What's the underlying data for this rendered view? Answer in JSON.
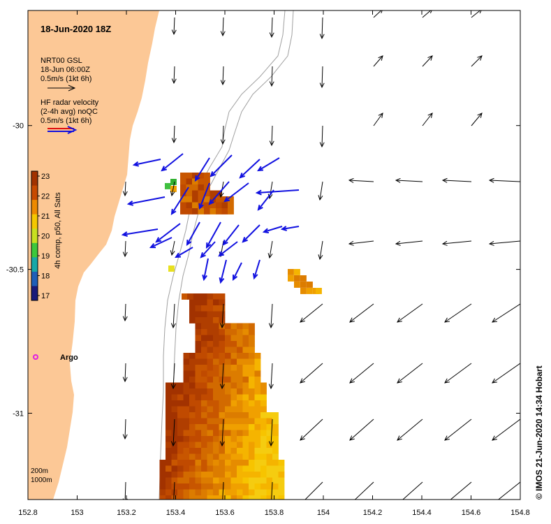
{
  "title": "18-Jun-2020 18Z",
  "model_legend": {
    "line1": "NRT00 GSL",
    "line2": "18-Jun 06:00Z",
    "line3": "0.5m/s (1kt 6h)"
  },
  "radar_legend": {
    "line1": "HF radar velocity",
    "line2": "(2-4h avg) noQC",
    "line3": "0.5m/s (1kt 6h)",
    "color": "#1010e0",
    "accent": "#e01010"
  },
  "colorbar": {
    "label": "4h comp, p50, All Sats",
    "ticks": [
      "23",
      "22",
      "21",
      "20",
      "19",
      "18",
      "17"
    ],
    "min": 17,
    "max": 23,
    "colors": [
      "#1a1a7a",
      "#1f5fb8",
      "#18a8a8",
      "#3cc83c",
      "#c8e020",
      "#f5c800",
      "#ee8a00",
      "#c84a00",
      "#a23200"
    ]
  },
  "marker": {
    "label": "Argo",
    "color": "#e020e0"
  },
  "depth_legend": {
    "line1": "200m",
    "line2": "1000m"
  },
  "credit": "© IMOS 21-Jun-2020 14:34 Hobart",
  "axes": {
    "lon_ticks": [
      "152.8",
      "153",
      "153.2",
      "153.4",
      "153.6",
      "153.8",
      "154",
      "154.2",
      "154.4",
      "154.6",
      "154.8"
    ],
    "lon_values": [
      152.8,
      153.0,
      153.2,
      153.4,
      153.6,
      153.8,
      154.0,
      154.2,
      154.4,
      154.6,
      154.8
    ],
    "lat_ticks": [
      "-30",
      "-30.5",
      "-31"
    ],
    "lat_values": [
      -30.0,
      -30.5,
      -31.0
    ],
    "lon_range": [
      152.8,
      154.8
    ],
    "lat_range": [
      -31.3,
      -29.6
    ]
  },
  "colors": {
    "land": "#fcc896",
    "ocean": "#ffffff",
    "bathymetry": "#a0a0a0"
  }
}
